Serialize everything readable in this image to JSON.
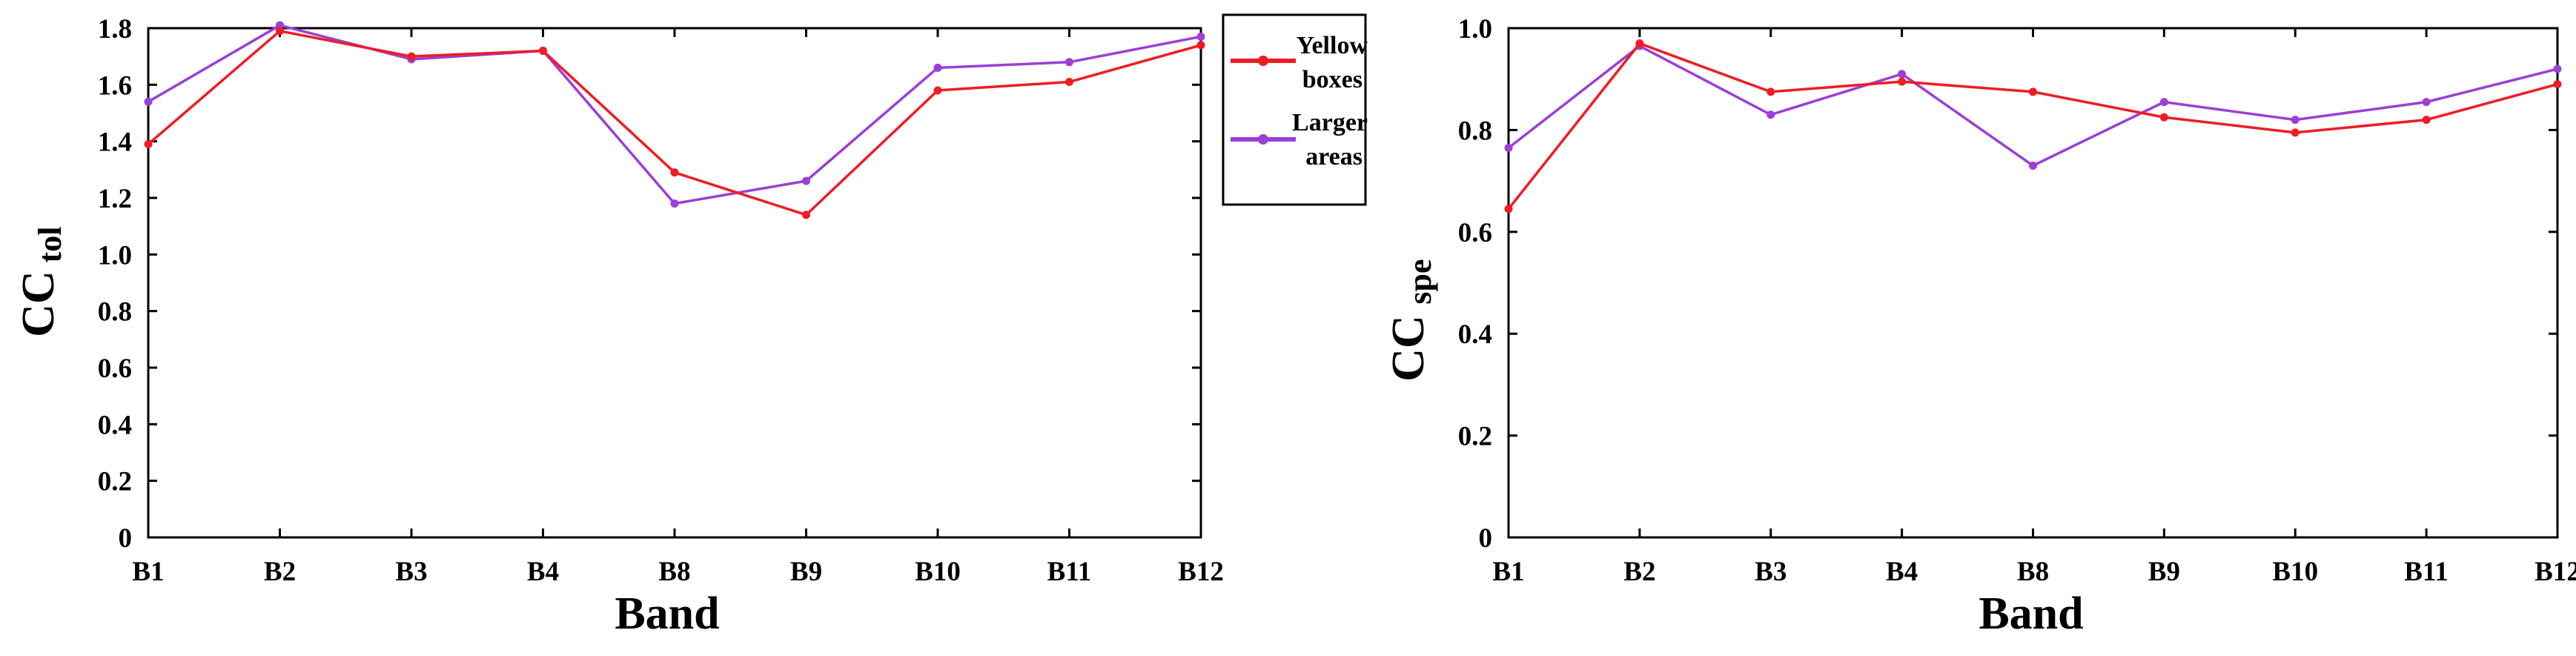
{
  "colors": {
    "series_red": "#ee1c25",
    "series_purple": "#9b3fd6",
    "axis": "#000000"
  },
  "legend": {
    "entries": [
      {
        "line1": "Yellow",
        "line2": "boxes"
      },
      {
        "line1": "Larger",
        "line2": "areas"
      }
    ]
  },
  "chart_data": [
    {
      "type": "line",
      "title": "",
      "xlabel": "Band",
      "ylabel_main": "CC",
      "ylabel_sub": "tol",
      "ylim": [
        0,
        1.8
      ],
      "yticks": [
        0,
        0.2,
        0.4,
        0.6,
        0.8,
        1.0,
        1.2,
        1.4,
        1.6,
        1.8
      ],
      "ytick_labels": [
        "0",
        "0.2",
        "0.4",
        "0.6",
        "0.8",
        "1.0",
        "1.2",
        "1.4",
        "1.6",
        "1.8"
      ],
      "categories": [
        "B1",
        "B2",
        "B3",
        "B4",
        "B8",
        "B9",
        "B10",
        "B11",
        "B12"
      ],
      "series": [
        {
          "name": "Yellow boxes",
          "color": "#ee1c25",
          "values": [
            1.39,
            1.79,
            1.7,
            1.72,
            1.29,
            1.14,
            1.58,
            1.61,
            1.74
          ]
        },
        {
          "name": "Larger areas",
          "color": "#9b3fd6",
          "values": [
            1.54,
            1.81,
            1.69,
            1.72,
            1.18,
            1.26,
            1.66,
            1.68,
            1.77
          ]
        }
      ]
    },
    {
      "type": "line",
      "title": "",
      "xlabel": "Band",
      "ylabel_main": "CC",
      "ylabel_sub": "spe",
      "ylim": [
        0,
        1.0
      ],
      "yticks": [
        0,
        0.2,
        0.4,
        0.6,
        0.8,
        1.0
      ],
      "ytick_labels": [
        "0",
        "0.2",
        "0.4",
        "0.6",
        "0.8",
        "1.0"
      ],
      "categories": [
        "B1",
        "B2",
        "B3",
        "B4",
        "B8",
        "B9",
        "B10",
        "B11",
        "B12"
      ],
      "series": [
        {
          "name": "Yellow boxes",
          "color": "#ee1c25",
          "values": [
            0.645,
            0.97,
            0.875,
            0.895,
            0.875,
            0.825,
            0.795,
            0.82,
            0.89
          ]
        },
        {
          "name": "Larger areas",
          "color": "#9b3fd6",
          "values": [
            0.765,
            0.965,
            0.83,
            0.91,
            0.73,
            0.855,
            0.82,
            0.855,
            0.92
          ]
        }
      ]
    }
  ]
}
